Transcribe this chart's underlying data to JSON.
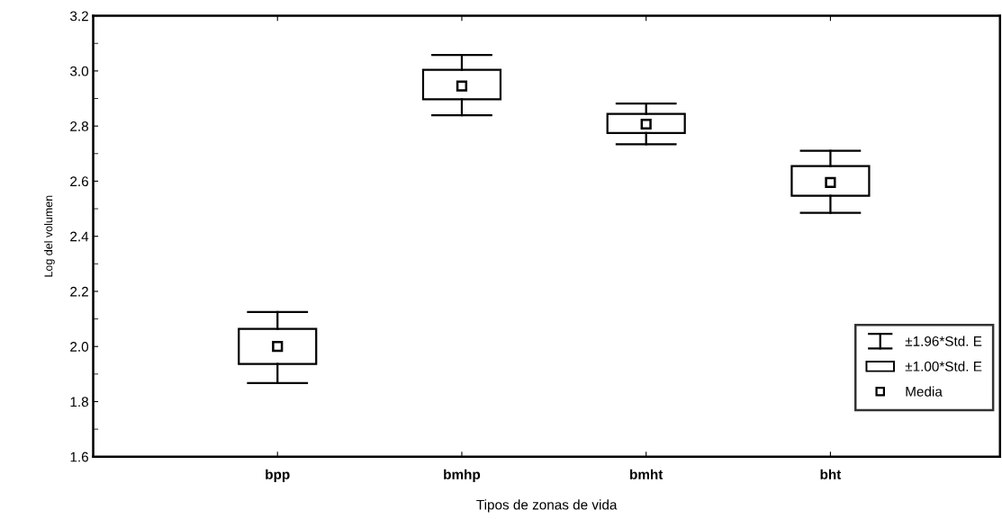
{
  "chart_data": {
    "type": "box",
    "xlabel": "Tipos de zonas de vida",
    "ylabel": "Log del volumen",
    "categories": [
      "bpp",
      "bmhp",
      "bmht",
      "bht"
    ],
    "boxes": [
      {
        "low": 1.867,
        "q1": 1.937,
        "q3": 2.064,
        "high": 2.125
      },
      {
        "low": 2.839,
        "q1": 2.897,
        "q3": 3.004,
        "high": 3.058
      },
      {
        "low": 2.734,
        "q1": 2.775,
        "q3": 2.844,
        "high": 2.882
      },
      {
        "low": 2.485,
        "q1": 2.547,
        "q3": 2.655,
        "high": 2.71
      }
    ],
    "series": [
      {
        "name": "Media",
        "type": "scatter",
        "color": "#000000",
        "values": [
          2.0,
          2.945,
          2.807,
          2.595
        ]
      }
    ],
    "annotations": [
      "±1.96*Std. E",
      "±1.00*Std. E"
    ],
    "ylim": [
      1.6,
      3.2
    ],
    "yticks": [
      {
        "value": 1.6,
        "label": "1.6"
      },
      {
        "value": 1.8,
        "label": "1.8"
      },
      {
        "value": 2.0,
        "label": "2.0"
      },
      {
        "value": 2.2,
        "label": "2.2"
      },
      {
        "value": 2.4,
        "label": "2.4"
      },
      {
        "value": 2.6,
        "label": "2.6"
      },
      {
        "value": 2.8,
        "label": "2.8"
      },
      {
        "value": 3.0,
        "label": "3.0"
      },
      {
        "value": 3.2,
        "label": "3.2"
      }
    ],
    "grid": false,
    "legend": "bottom right",
    "marker": "square"
  }
}
